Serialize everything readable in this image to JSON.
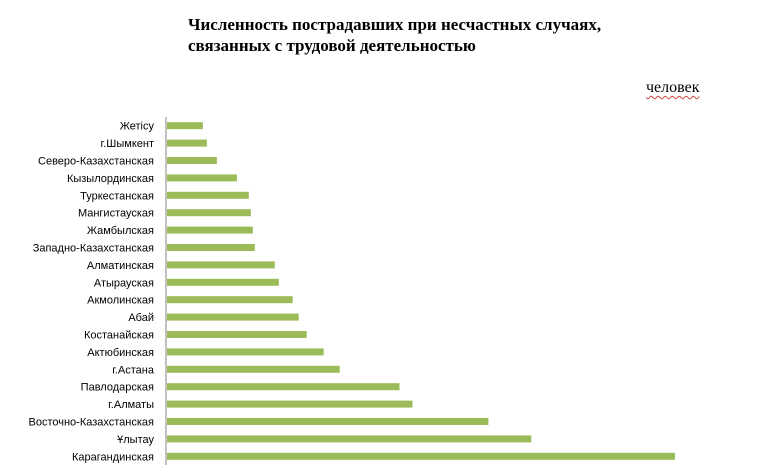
{
  "title": "Численность пострадавших при несчастных случаях,\nсвязанных с трудовой деятельностью",
  "unit": "человек",
  "chart_data": {
    "type": "bar",
    "orientation": "horizontal",
    "title": "Численность пострадавших при несчастных случаях, связанных с трудовой деятельностью",
    "ylabel": "человек",
    "categories": [
      "Жетісу",
      "г.Шымкент",
      "Северо-Казахстанская",
      "Кызылординская",
      "Туркестанская",
      "Мангистауская",
      "Жамбылская",
      "Западно-Казахстанская",
      "Алматинская",
      "Атырауская",
      "Акмолинская",
      "Абай",
      "Костанайская",
      "Актюбинская",
      "г.Астана",
      "Павлодарская",
      "г.Алматы",
      "Восточно-Казахстанская",
      "Ұлытау",
      "Карагандинская"
    ],
    "values": [
      36,
      40,
      50,
      70,
      82,
      84,
      86,
      88,
      108,
      112,
      126,
      132,
      140,
      157,
      173,
      233,
      246,
      322,
      365,
      509
    ],
    "xlim": [
      0,
      520
    ],
    "grid": false,
    "legend": "none",
    "bar_color": "#9bbb59",
    "axis_color": "#868686"
  }
}
